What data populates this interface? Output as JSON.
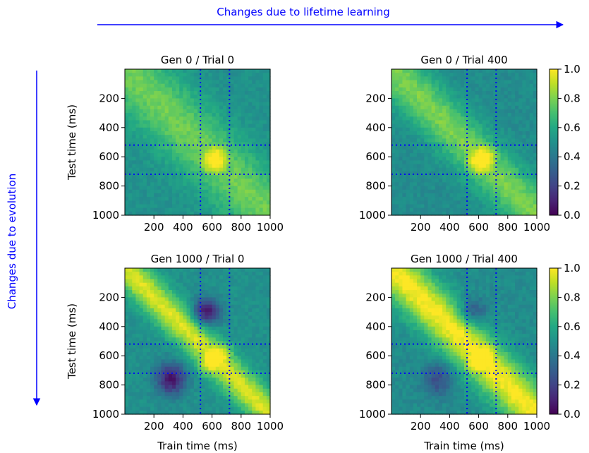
{
  "annotations": {
    "top_arrow_label": "Changes due to lifetime learning",
    "left_arrow_label": "Changes due to evolution",
    "arrow_color": "#0000ff"
  },
  "colormap": "viridis",
  "colorbar": {
    "ticks": [
      "0.0",
      "0.2",
      "0.4",
      "0.6",
      "0.8",
      "1.0"
    ],
    "range": [
      0,
      1
    ]
  },
  "chart_data": [
    {
      "type": "heatmap",
      "title": "Gen 0 / Trial 0",
      "xlabel": "",
      "ylabel": "Test time (ms)",
      "xlim": [
        0,
        1000
      ],
      "ylim": [
        1000,
        0
      ],
      "xticks": [
        "200",
        "400",
        "600",
        "800",
        "1000"
      ],
      "yticks": [
        "200",
        "400",
        "600",
        "800",
        "1000"
      ],
      "reference_lines_ms": [
        520,
        720
      ],
      "value_range": [
        0,
        1
      ],
      "colorbar": false,
      "pattern": {
        "baseline": 0.5,
        "diagonal_peak": 0.78,
        "diagonal_width_ms": 220,
        "center_blob": 0.85,
        "off_diagonal_dips": 0.0
      }
    },
    {
      "type": "heatmap",
      "title": "Gen 0 / Trial 400",
      "xlabel": "",
      "ylabel": "",
      "xlim": [
        0,
        1000
      ],
      "ylim": [
        1000,
        0
      ],
      "xticks": [
        "200",
        "400",
        "600",
        "800",
        "1000"
      ],
      "yticks": [
        "200",
        "400",
        "600",
        "800",
        "1000"
      ],
      "reference_lines_ms": [
        520,
        720
      ],
      "value_range": [
        0,
        1
      ],
      "colorbar": true,
      "pattern": {
        "baseline": 0.48,
        "diagonal_peak": 0.8,
        "diagonal_width_ms": 160,
        "center_blob": 0.88,
        "off_diagonal_dips": 0.0
      }
    },
    {
      "type": "heatmap",
      "title": "Gen 1000 / Trial 0",
      "xlabel": "Train time (ms)",
      "ylabel": "Test time (ms)",
      "xlim": [
        0,
        1000
      ],
      "ylim": [
        1000,
        0
      ],
      "xticks": [
        "200",
        "400",
        "600",
        "800",
        "1000"
      ],
      "yticks": [
        "200",
        "400",
        "600",
        "800",
        "1000"
      ],
      "reference_lines_ms": [
        520,
        720
      ],
      "value_range": [
        0,
        1
      ],
      "colorbar": false,
      "pattern": {
        "baseline": 0.5,
        "diagonal_peak": 0.95,
        "diagonal_width_ms": 110,
        "center_blob": 0.9,
        "off_diagonal_dips": 0.45
      }
    },
    {
      "type": "heatmap",
      "title": "Gen 1000 / Trial 400",
      "xlabel": "Train time (ms)",
      "ylabel": "",
      "xlim": [
        0,
        1000
      ],
      "ylim": [
        1000,
        0
      ],
      "xticks": [
        "200",
        "400",
        "600",
        "800",
        "1000"
      ],
      "yticks": [
        "200",
        "400",
        "600",
        "800",
        "1000"
      ],
      "reference_lines_ms": [
        520,
        720
      ],
      "value_range": [
        0,
        1
      ],
      "colorbar": true,
      "pattern": {
        "baseline": 0.48,
        "diagonal_peak": 1.0,
        "diagonal_width_ms": 150,
        "center_blob": 1.0,
        "off_diagonal_dips": 0.25
      }
    }
  ]
}
